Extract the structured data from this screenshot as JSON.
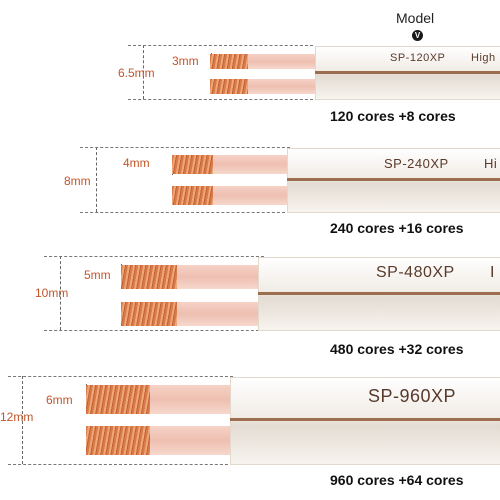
{
  "header": {
    "model_label": "Model",
    "model_badge": "V"
  },
  "cables": [
    {
      "model": "SP-120XP",
      "extra": "High",
      "cores": "120 cores +8 cores",
      "outer_dim": "6.5mm",
      "inner_dim": "3mm"
    },
    {
      "model": "SP-240XP",
      "extra": "Hi",
      "cores": "240 cores +16 cores",
      "outer_dim": "8mm",
      "inner_dim": "4mm"
    },
    {
      "model": "SP-480XP",
      "extra": "I",
      "cores": "480 cores +32 cores",
      "outer_dim": "10mm",
      "inner_dim": "5mm"
    },
    {
      "model": "SP-960XP",
      "extra": "",
      "cores": "960 cores +64 cores",
      "outer_dim": "12mm",
      "inner_dim": "6mm"
    }
  ]
}
